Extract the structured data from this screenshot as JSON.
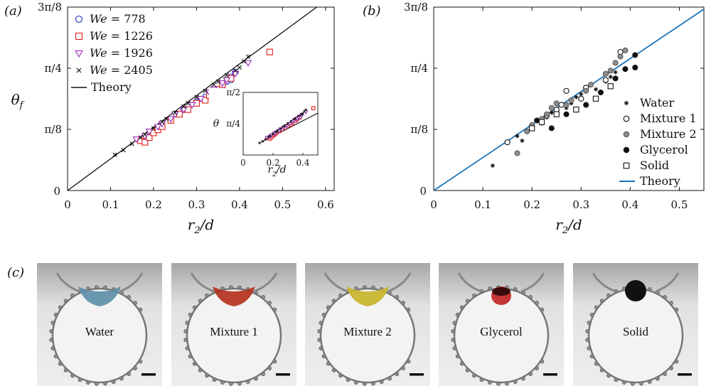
{
  "panel_labels": {
    "a": "(a)",
    "b": "(b)",
    "c": "(c)"
  },
  "chart_data": [
    {
      "type": "scatter",
      "panel": "(a)",
      "xlabel": "r2/d",
      "ylabel": "θf",
      "xlim": [
        0,
        0.62
      ],
      "ylim": [
        0,
        1.1781
      ],
      "x_ticks": [
        "0",
        "0.1",
        "0.2",
        "0.3",
        "0.4",
        "0.5",
        "0.6"
      ],
      "y_ticks": [
        "π/8",
        "π/4",
        "3π/8"
      ],
      "legend_position": "top-left",
      "series": [
        {
          "name": "We = 778",
          "marker": "circle",
          "color": "#1f2fc8",
          "x": [
            0.27,
            0.3,
            0.32,
            0.33,
            0.35,
            0.36,
            0.37,
            0.38,
            0.38,
            0.39
          ],
          "y": [
            0.52,
            0.57,
            0.6,
            0.62,
            0.65,
            0.67,
            0.7,
            0.71,
            0.73,
            0.76
          ]
        },
        {
          "name": "We = 1226",
          "marker": "square",
          "color": "#e21a1a",
          "x": [
            0.17,
            0.18,
            0.19,
            0.2,
            0.21,
            0.22,
            0.24,
            0.26,
            0.28,
            0.3,
            0.32,
            0.33,
            0.35,
            0.36,
            0.38,
            0.47
          ],
          "y": [
            0.32,
            0.31,
            0.34,
            0.37,
            0.39,
            0.41,
            0.45,
            0.49,
            0.52,
            0.56,
            0.58,
            0.61,
            0.65,
            0.68,
            0.72,
            0.89
          ]
        },
        {
          "name": "We = 1926",
          "marker": "triangle-down",
          "color": "#9a2fb3",
          "x": [
            0.16,
            0.18,
            0.19,
            0.21,
            0.22,
            0.24,
            0.25,
            0.27,
            0.29,
            0.31,
            0.33,
            0.34,
            0.36,
            0.37,
            0.39,
            0.42
          ],
          "y": [
            0.33,
            0.35,
            0.38,
            0.41,
            0.43,
            0.46,
            0.49,
            0.52,
            0.55,
            0.59,
            0.63,
            0.65,
            0.69,
            0.71,
            0.75,
            0.82
          ]
        },
        {
          "name": "We = 2405",
          "marker": "x",
          "color": "#111111",
          "x": [
            0.11,
            0.13,
            0.15,
            0.17,
            0.18,
            0.2,
            0.22,
            0.23,
            0.25,
            0.27,
            0.28,
            0.3,
            0.32,
            0.34,
            0.35,
            0.37,
            0.39,
            0.4,
            0.41,
            0.42
          ],
          "y": [
            0.23,
            0.26,
            0.3,
            0.34,
            0.36,
            0.4,
            0.44,
            0.46,
            0.5,
            0.54,
            0.56,
            0.6,
            0.64,
            0.68,
            0.7,
            0.74,
            0.77,
            0.79,
            0.83,
            0.86
          ]
        }
      ],
      "theory_line": {
        "name": "Theory",
        "x": [
          0,
          0.6
        ],
        "y": [
          0,
          1.22
        ]
      }
    },
    {
      "type": "scatter",
      "panel": "inset",
      "xlabel": "r2/d",
      "ylabel": "θ",
      "xlim": [
        0,
        0.5
      ],
      "ylim": [
        0,
        1.5708
      ],
      "x_ticks": [
        "0",
        "0.2",
        "0.4"
      ],
      "y_ticks": [
        "π/4",
        "π/2"
      ],
      "theory_line": {
        "x": [
          0.12,
          0.5
        ],
        "y": [
          0.32,
          1.05
        ]
      }
    },
    {
      "type": "scatter",
      "panel": "(b)",
      "xlabel": "r2/d",
      "ylabel": "",
      "xlim": [
        0,
        0.55
      ],
      "ylim": [
        0,
        1.1781
      ],
      "x_ticks": [
        "0",
        "0.1",
        "0.2",
        "0.3",
        "0.4",
        "0.5"
      ],
      "y_ticks": [
        "π/8",
        "π/4",
        "3π/8"
      ],
      "legend_position": "right",
      "series": [
        {
          "name": "Water",
          "marker": "asterisk",
          "color": "#111111",
          "x": [
            0.12,
            0.17,
            0.18,
            0.19,
            0.2,
            0.21,
            0.22,
            0.23,
            0.24,
            0.25,
            0.27,
            0.28,
            0.29,
            0.3,
            0.33,
            0.35,
            0.36,
            0.37
          ],
          "y": [
            0.16,
            0.35,
            0.32,
            0.38,
            0.4,
            0.45,
            0.43,
            0.47,
            0.5,
            0.49,
            0.53,
            0.56,
            0.6,
            0.62,
            0.65,
            0.7,
            0.73,
            0.76
          ]
        },
        {
          "name": "Mixture 1",
          "marker": "circle-open",
          "color": "#111111",
          "x": [
            0.15,
            0.2,
            0.23,
            0.25,
            0.26,
            0.27,
            0.3,
            0.31,
            0.35,
            0.38
          ],
          "y": [
            0.31,
            0.41,
            0.48,
            0.52,
            0.55,
            0.64,
            0.59,
            0.66,
            0.71,
            0.89
          ]
        },
        {
          "name": "Mixture 2",
          "marker": "circle-gray",
          "color": "#8c8c8c",
          "x": [
            0.17,
            0.19,
            0.2,
            0.22,
            0.23,
            0.24,
            0.25,
            0.27,
            0.28,
            0.31,
            0.32,
            0.35,
            0.36,
            0.37,
            0.38,
            0.39
          ],
          "y": [
            0.24,
            0.38,
            0.42,
            0.46,
            0.49,
            0.53,
            0.56,
            0.55,
            0.58,
            0.64,
            0.68,
            0.75,
            0.77,
            0.82,
            0.86,
            0.9
          ]
        },
        {
          "name": "Glycerol",
          "marker": "circle-filled",
          "color": "#111111",
          "x": [
            0.21,
            0.24,
            0.27,
            0.31,
            0.34,
            0.37,
            0.39,
            0.41,
            0.41
          ],
          "y": [
            0.45,
            0.4,
            0.49,
            0.55,
            0.63,
            0.72,
            0.78,
            0.79,
            0.87
          ]
        },
        {
          "name": "Solid",
          "marker": "square-open",
          "color": "#111111",
          "x": [
            0.2,
            0.22,
            0.25,
            0.29,
            0.33,
            0.36
          ],
          "y": [
            0.4,
            0.44,
            0.49,
            0.52,
            0.59,
            0.67
          ]
        }
      ],
      "theory_line": {
        "name": "Theory",
        "color": "#1b75bb",
        "x": [
          0,
          0.55
        ],
        "y": [
          0,
          1.165
        ]
      }
    }
  ],
  "photos": [
    {
      "label": "Water",
      "drop_color": "#5d8fa8",
      "scale_bar": true
    },
    {
      "label": "Mixture 1",
      "drop_color": "#b5321e",
      "scale_bar": true
    },
    {
      "label": "Mixture 2",
      "drop_color": "#c8b42a",
      "scale_bar": true
    },
    {
      "label": "Glycerol",
      "drop_color": "#c02020",
      "scale_bar": true
    },
    {
      "label": "Solid",
      "drop_color": "#111111",
      "scale_bar": true
    }
  ]
}
